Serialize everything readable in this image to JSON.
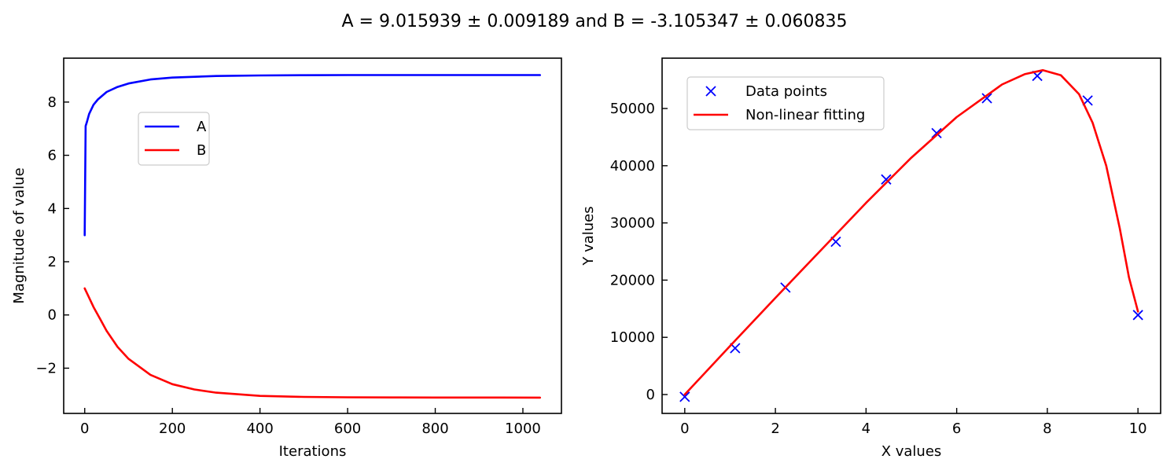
{
  "figure": {
    "suptitle": "A = 9.015939 ± 0.009189 and B = -3.105347 ± 0.060835"
  },
  "chart_data": [
    {
      "type": "line",
      "title": "",
      "xlabel": "Iterations",
      "ylabel": "Magnitude of value",
      "xlim": [
        -48,
        1088
      ],
      "ylim": [
        -3.7,
        9.65
      ],
      "xticks": [
        0,
        200,
        400,
        600,
        800,
        1000
      ],
      "xtick_labels": [
        "0",
        "200",
        "400",
        "600",
        "800",
        "1000"
      ],
      "yticks": [
        -2,
        0,
        2,
        4,
        6,
        8
      ],
      "ytick_labels": [
        "−2",
        "0",
        "2",
        "4",
        "6",
        "8"
      ],
      "grid": false,
      "legend": "upper left, inset",
      "series": [
        {
          "name": "A",
          "color": "#0000ff",
          "x": [
            0,
            2,
            5,
            10,
            20,
            30,
            50,
            75,
            100,
            150,
            200,
            300,
            400,
            500,
            600,
            800,
            1039
          ],
          "y": [
            3.0,
            7.1,
            7.25,
            7.55,
            7.9,
            8.1,
            8.38,
            8.57,
            8.7,
            8.85,
            8.92,
            8.98,
            9.0,
            9.01,
            9.015,
            9.016,
            9.016
          ]
        },
        {
          "name": "B",
          "color": "#ff0000",
          "x": [
            0,
            10,
            20,
            30,
            50,
            75,
            100,
            150,
            200,
            250,
            300,
            400,
            500,
            600,
            700,
            800,
            1039
          ],
          "y": [
            1.0,
            0.65,
            0.3,
            0.0,
            -0.6,
            -1.2,
            -1.65,
            -2.25,
            -2.6,
            -2.8,
            -2.92,
            -3.04,
            -3.08,
            -3.095,
            -3.1,
            -3.104,
            -3.105
          ]
        }
      ]
    },
    {
      "type": "scatter",
      "title": "",
      "xlabel": "X values",
      "ylabel": "Y values",
      "xlim": [
        -0.5,
        10.5
      ],
      "ylim": [
        -3300,
        58800
      ],
      "xticks": [
        0,
        2,
        4,
        6,
        8,
        10
      ],
      "xtick_labels": [
        "0",
        "2",
        "4",
        "6",
        "8",
        "10"
      ],
      "yticks": [
        0,
        10000,
        20000,
        30000,
        40000,
        50000
      ],
      "ytick_labels": [
        "0",
        "10000",
        "20000",
        "30000",
        "40000",
        "50000"
      ],
      "grid": false,
      "legend": "upper left",
      "series": [
        {
          "name": "Data points",
          "color": "#0000ff",
          "marker": "x",
          "x": [
            0,
            1.111,
            2.222,
            3.333,
            4.444,
            5.556,
            6.667,
            7.778,
            8.889,
            10
          ],
          "y": [
            -400,
            8100,
            18700,
            26700,
            37600,
            45700,
            51800,
            55700,
            51400,
            13900
          ]
        },
        {
          "name": "Non-linear fitting",
          "color": "#ff0000",
          "x": [
            0,
            1,
            2,
            3,
            4,
            5,
            6,
            7,
            7.5,
            7.9,
            8.3,
            8.7,
            9.0,
            9.3,
            9.6,
            9.8,
            10
          ],
          "y": [
            0,
            8500,
            16900,
            25200,
            33500,
            41400,
            48500,
            54200,
            56000,
            56700,
            55800,
            52500,
            47500,
            40000,
            29000,
            20500,
            14500
          ]
        }
      ]
    }
  ]
}
